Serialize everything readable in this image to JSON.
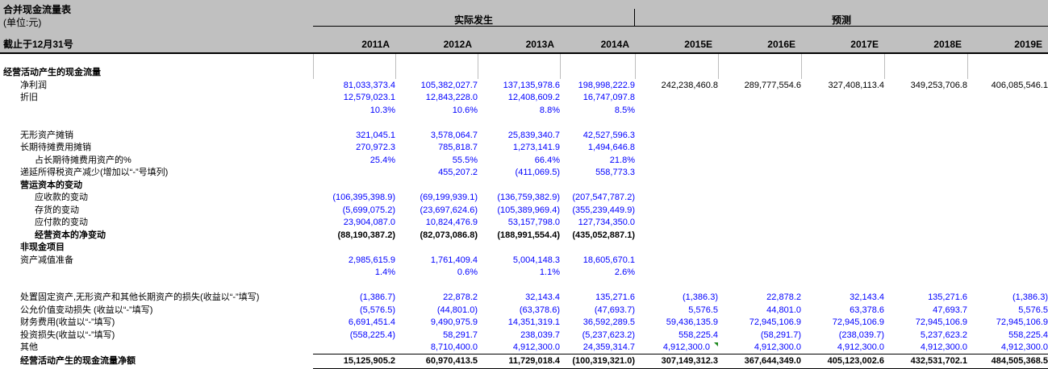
{
  "sheet": {
    "title": "合并现金流量表",
    "unit": "(单位:元)",
    "date_label": "截止于12月31号",
    "group_actual": "实际发生",
    "group_forecast": "预测",
    "columns": [
      "2011A",
      "2012A",
      "2013A",
      "2014A",
      "2015E",
      "2016E",
      "2017E",
      "2018E",
      "2019E"
    ]
  },
  "colors": {
    "header_gray": "#c0c0c0",
    "input_blue": "#0000ff",
    "formula_black": "#000000",
    "flag_green": "#1f8a1f",
    "gridline_gray": "#bdbdbd"
  },
  "rows": [
    {
      "type": "grid",
      "grid": true,
      "label": "",
      "cells": [
        "",
        "",
        "",
        "",
        "",
        "",
        "",
        "",
        ""
      ]
    },
    {
      "type": "section",
      "grid": true,
      "label": "经营活动产生的现金流量",
      "indent": 0,
      "bold": true,
      "cells": [
        "",
        "",
        "",
        "",
        "",
        "",
        "",
        "",
        ""
      ]
    },
    {
      "label": "净利润",
      "indent": 1,
      "color": "blue",
      "forecast_color": "black",
      "cells": [
        "81,033,373.4",
        "105,382,027.7",
        "137,135,978.6",
        "198,998,222.9",
        "242,238,460.8",
        "289,777,554.6",
        "327,408,113.4",
        "349,253,706.8",
        "406,085,546.1"
      ]
    },
    {
      "label": "折旧",
      "indent": 1,
      "color": "blue",
      "cells": [
        "12,579,023.1",
        "12,843,228.0",
        "12,408,609.2",
        "16,747,097.8",
        "",
        "",
        "",
        "",
        ""
      ]
    },
    {
      "label": "",
      "indent": 1,
      "color": "blue",
      "cells": [
        "10.3%",
        "10.6%",
        "8.8%",
        "8.5%",
        "",
        "",
        "",
        "",
        ""
      ]
    },
    {
      "type": "blank",
      "label": "",
      "cells": [
        "",
        "",
        "",
        "",
        "",
        "",
        "",
        "",
        ""
      ]
    },
    {
      "label": "无形资产摊销",
      "indent": 1,
      "color": "blue",
      "cells": [
        "321,045.1",
        "3,578,064.7",
        "25,839,340.7",
        "42,527,596.3",
        "",
        "",
        "",
        "",
        ""
      ]
    },
    {
      "label": "长期待摊费用摊销",
      "indent": 1,
      "color": "blue",
      "cells": [
        "270,972.3",
        "785,818.7",
        "1,273,141.9",
        "1,494,646.8",
        "",
        "",
        "",
        "",
        ""
      ]
    },
    {
      "label": "占长期待摊费用资产的%",
      "indent": 2,
      "color": "blue",
      "cells": [
        "25.4%",
        "55.5%",
        "66.4%",
        "21.8%",
        "",
        "",
        "",
        "",
        ""
      ]
    },
    {
      "label": "递延所得税资产减少(增加以“-”号填列)",
      "indent": 1,
      "color": "blue",
      "cells": [
        "",
        "455,207.2",
        "(411,069.5)",
        "558,773.3",
        "",
        "",
        "",
        "",
        ""
      ]
    },
    {
      "type": "section",
      "label": "营运资本的变动",
      "indent": 1,
      "bold": true,
      "cells": [
        "",
        "",
        "",
        "",
        "",
        "",
        "",
        "",
        ""
      ]
    },
    {
      "label": "应收款的变动",
      "indent": 2,
      "color": "blue",
      "cells": [
        "(106,395,398.9)",
        "(69,199,939.1)",
        "(136,759,382.9)",
        "(207,547,787.2)",
        "",
        "",
        "",
        "",
        ""
      ]
    },
    {
      "label": "存货的变动",
      "indent": 2,
      "color": "blue",
      "cells": [
        "(5,699,075.2)",
        "(23,697,624.6)",
        "(105,389,969.4)",
        "(355,239,449.9)",
        "",
        "",
        "",
        "",
        ""
      ]
    },
    {
      "label": "应付款的变动",
      "indent": 2,
      "color": "blue",
      "cells": [
        "23,904,087.0",
        "10,824,476.9",
        "53,157,798.0",
        "127,734,350.0",
        "",
        "",
        "",
        "",
        ""
      ]
    },
    {
      "label": "经营资本的净变动",
      "indent": 2,
      "bold": true,
      "color": "black-bold",
      "cells": [
        "(88,190,387.2)",
        "(82,073,086.8)",
        "(188,991,554.4)",
        "(435,052,887.1)",
        "",
        "",
        "",
        "",
        ""
      ]
    },
    {
      "type": "section",
      "label": "非现金项目",
      "indent": 1,
      "bold": true,
      "cells": [
        "",
        "",
        "",
        "",
        "",
        "",
        "",
        "",
        ""
      ]
    },
    {
      "label": "资产减值准备",
      "indent": 1,
      "color": "blue",
      "cells": [
        "2,985,615.9",
        "1,761,409.4",
        "5,004,148.3",
        "18,605,670.1",
        "",
        "",
        "",
        "",
        ""
      ]
    },
    {
      "label": "",
      "indent": 1,
      "color": "blue",
      "cells": [
        "1.4%",
        "0.6%",
        "1.1%",
        "2.6%",
        "",
        "",
        "",
        "",
        ""
      ]
    },
    {
      "type": "blank",
      "label": "",
      "cells": [
        "",
        "",
        "",
        "",
        "",
        "",
        "",
        "",
        ""
      ]
    },
    {
      "label": "处置固定资产,无形资产和其他长期资产的损失(收益以“-”填写)",
      "indent": 1,
      "color": "blue",
      "cells": [
        "(1,386.7)",
        "22,878.2",
        "32,143.4",
        "135,271.6",
        "(1,386.3)",
        "22,878.2",
        "32,143.4",
        "135,271.6",
        "(1,386.3)"
      ]
    },
    {
      "label": "公允价值变动损失 (收益以“-”填写)",
      "indent": 1,
      "color": "blue",
      "cells": [
        "(5,576.5)",
        "(44,801.0)",
        "(63,378.6)",
        "(47,693.7)",
        "5,576.5",
        "44,801.0",
        "63,378.6",
        "47,693.7",
        "5,576.5"
      ]
    },
    {
      "label": "财务费用(收益以“-”填写)",
      "indent": 1,
      "color": "blue",
      "cells": [
        "6,691,451.4",
        "9,490,975.9",
        "14,351,319.1",
        "36,592,289.5",
        "59,436,135.9",
        "72,945,106.9",
        "72,945,106.9",
        "72,945,106.9",
        "72,945,106.9"
      ]
    },
    {
      "label": "投资损失(收益以“-”填写)",
      "indent": 1,
      "color": "blue",
      "cells": [
        "(558,225.4)",
        "58,291.7",
        "238,039.7",
        "(5,237,623.2)",
        "558,225.4",
        "(58,291.7)",
        "(238,039.7)",
        "5,237,623.2",
        "558,225.4"
      ]
    },
    {
      "label": "其他",
      "indent": 1,
      "color": "blue",
      "flag_col": 4,
      "cells": [
        "",
        "8,710,400.0",
        "4,912,300.0",
        "24,359,314.7",
        "4,912,300.0",
        "4,912,300.0",
        "4,912,300.0",
        "4,912,300.0",
        "4,912,300.0"
      ]
    },
    {
      "type": "total",
      "label": "经营活动产生的现金流量净额",
      "indent": 1,
      "bold": true,
      "color": "black-bold",
      "cells": [
        "15,125,905.2",
        "60,970,413.5",
        "11,729,018.4",
        "(100,319,321.0)",
        "307,149,312.3",
        "367,644,349.0",
        "405,123,002.6",
        "432,531,702.1",
        "484,505,368.5"
      ]
    }
  ]
}
